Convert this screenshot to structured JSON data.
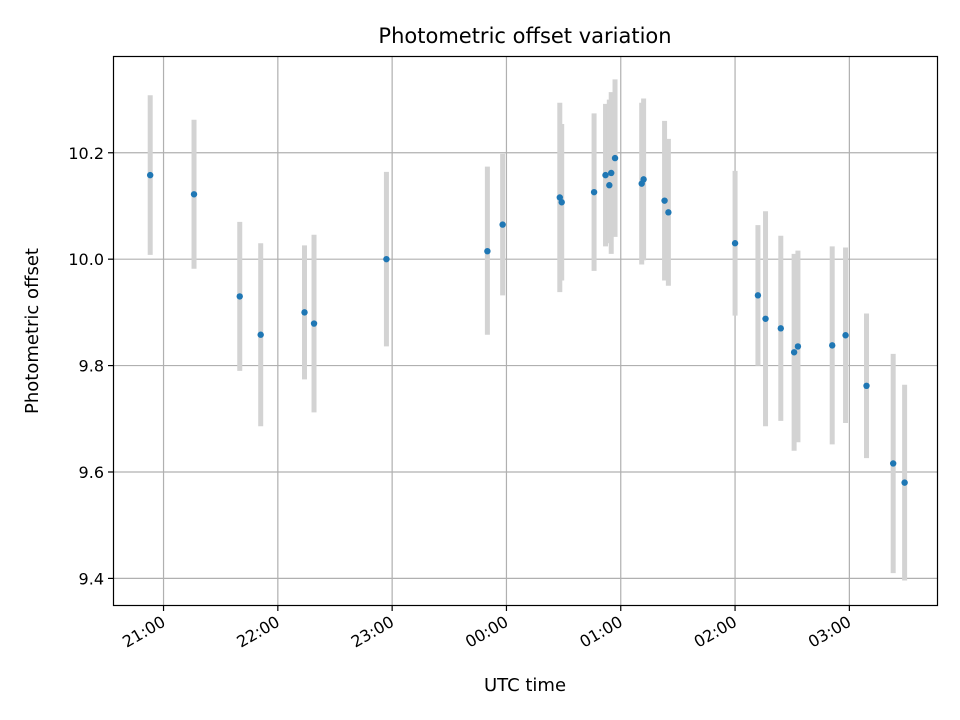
{
  "chart_data": {
    "type": "scatter",
    "title": "Photometric offset variation",
    "xlabel": "UTC time",
    "ylabel": "Photometric offset",
    "x_tick_labels": [
      "21:00",
      "22:00",
      "23:00",
      "00:00",
      "01:00",
      "02:00",
      "03:00"
    ],
    "x_ticks": [
      "2000-01-01T21:00",
      "2000-01-01T22:00",
      "2000-01-01T23:00",
      "2000-01-02T00:00",
      "2000-01-02T01:00",
      "2000-01-02T02:00",
      "2000-01-02T03:00"
    ],
    "y_ticks": [
      9.4,
      9.6,
      9.8,
      10.0,
      10.2
    ],
    "y_tick_labels": [
      "9.4",
      "9.6",
      "9.8",
      "10.0",
      "10.2"
    ],
    "xlim": [
      "2000-01-01T20:34",
      "2000-01-02T03:46"
    ],
    "ylim": [
      9.35,
      10.38
    ],
    "grid": true,
    "colors": {
      "point": "#1f77b4",
      "errorbar": "#d3d3d3",
      "grid": "#b0b0b0"
    },
    "series": [
      {
        "points": [
          {
            "t": "2000-01-01T20:53",
            "y": 10.158,
            "ylo": 10.008,
            "yhi": 10.308
          },
          {
            "t": "2000-01-01T21:16",
            "y": 10.122,
            "ylo": 9.982,
            "yhi": 10.262
          },
          {
            "t": "2000-01-01T21:40",
            "y": 9.93,
            "ylo": 9.79,
            "yhi": 10.07
          },
          {
            "t": "2000-01-01T21:51",
            "y": 9.858,
            "ylo": 9.686,
            "yhi": 10.03
          },
          {
            "t": "2000-01-01T22:14",
            "y": 9.9,
            "ylo": 9.774,
            "yhi": 10.026
          },
          {
            "t": "2000-01-01T22:19",
            "y": 9.879,
            "ylo": 9.712,
            "yhi": 10.046
          },
          {
            "t": "2000-01-01T22:57",
            "y": 10.0,
            "ylo": 9.836,
            "yhi": 10.164
          },
          {
            "t": "2000-01-01T23:50",
            "y": 10.015,
            "ylo": 9.858,
            "yhi": 10.174
          },
          {
            "t": "2000-01-01T23:58",
            "y": 10.065,
            "ylo": 9.932,
            "yhi": 10.198
          },
          {
            "t": "2000-01-02T00:28",
            "y": 10.116,
            "ylo": 9.938,
            "yhi": 10.294
          },
          {
            "t": "2000-01-02T00:29",
            "y": 10.107,
            "ylo": 9.96,
            "yhi": 10.254
          },
          {
            "t": "2000-01-02T00:46",
            "y": 10.126,
            "ylo": 9.978,
            "yhi": 10.274
          },
          {
            "t": "2000-01-02T00:52",
            "y": 10.158,
            "ylo": 10.024,
            "yhi": 10.292
          },
          {
            "t": "2000-01-02T00:54",
            "y": 10.139,
            "ylo": 10.03,
            "yhi": 10.3
          },
          {
            "t": "2000-01-02T00:55",
            "y": 10.162,
            "ylo": 10.01,
            "yhi": 10.314
          },
          {
            "t": "2000-01-02T00:57",
            "y": 10.19,
            "ylo": 10.042,
            "yhi": 10.338
          },
          {
            "t": "2000-01-02T01:11",
            "y": 10.142,
            "ylo": 9.99,
            "yhi": 10.294
          },
          {
            "t": "2000-01-02T01:12",
            "y": 10.15,
            "ylo": 9.998,
            "yhi": 10.302
          },
          {
            "t": "2000-01-02T01:23",
            "y": 10.11,
            "ylo": 9.96,
            "yhi": 10.26
          },
          {
            "t": "2000-01-02T01:25",
            "y": 10.088,
            "ylo": 9.95,
            "yhi": 10.226
          },
          {
            "t": "2000-01-02T02:00",
            "y": 10.03,
            "ylo": 9.894,
            "yhi": 10.166
          },
          {
            "t": "2000-01-02T02:12",
            "y": 9.932,
            "ylo": 9.8,
            "yhi": 10.064
          },
          {
            "t": "2000-01-02T02:16",
            "y": 9.888,
            "ylo": 9.686,
            "yhi": 10.09
          },
          {
            "t": "2000-01-02T02:24",
            "y": 9.87,
            "ylo": 9.696,
            "yhi": 10.044
          },
          {
            "t": "2000-01-02T02:31",
            "y": 9.825,
            "ylo": 9.64,
            "yhi": 10.01
          },
          {
            "t": "2000-01-02T02:33",
            "y": 9.836,
            "ylo": 9.656,
            "yhi": 10.016
          },
          {
            "t": "2000-01-02T02:51",
            "y": 9.838,
            "ylo": 9.652,
            "yhi": 10.024
          },
          {
            "t": "2000-01-02T02:58",
            "y": 9.857,
            "ylo": 9.692,
            "yhi": 10.022
          },
          {
            "t": "2000-01-02T03:09",
            "y": 9.762,
            "ylo": 9.626,
            "yhi": 9.898
          },
          {
            "t": "2000-01-02T03:23",
            "y": 9.616,
            "ylo": 9.41,
            "yhi": 9.822
          },
          {
            "t": "2000-01-02T03:29",
            "y": 9.58,
            "ylo": 9.396,
            "yhi": 9.764
          }
        ]
      }
    ]
  }
}
